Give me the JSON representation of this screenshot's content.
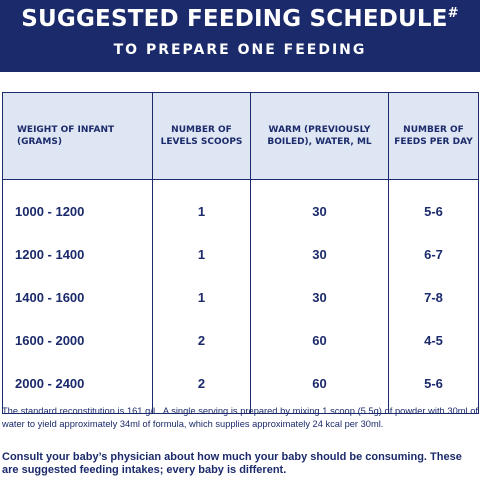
{
  "header": {
    "title": "SUGGESTED FEEDING SCHEDULE",
    "title_mark": "#",
    "subtitle": "TO PREPARE ONE FEEDING"
  },
  "table": {
    "columns": [
      "WEIGHT OF INFANT (GRAMS)",
      "NUMBER OF LEVELS SCOOPS",
      "WARM (PREVIOUSLY BOILED), WATER, ML",
      "NUMBER OF FEEDS PER DAY"
    ],
    "rows": [
      [
        "1000 - 1200",
        "1",
        "30",
        "5-6"
      ],
      [
        "1200 - 1400",
        "1",
        "30",
        "6-7"
      ],
      [
        "1400 - 1600",
        "1",
        "30",
        "7-8"
      ],
      [
        "1600 - 2000",
        "2",
        "60",
        "4-5"
      ],
      [
        "2000 - 2400",
        "2",
        "60",
        "5-6"
      ]
    ]
  },
  "footer": {
    "note": "The standard reconstitution is 161 g/L. A single serving is prepared by mixing 1 scoop (5.5g) of powder with 30ml of water to yield approximately 34ml of formula, which supplies approximately 24 kcal per 30ml.",
    "advice": "Consult your baby’s physician about how much your baby should be consuming. These are suggested feeding intakes; every baby is different."
  }
}
